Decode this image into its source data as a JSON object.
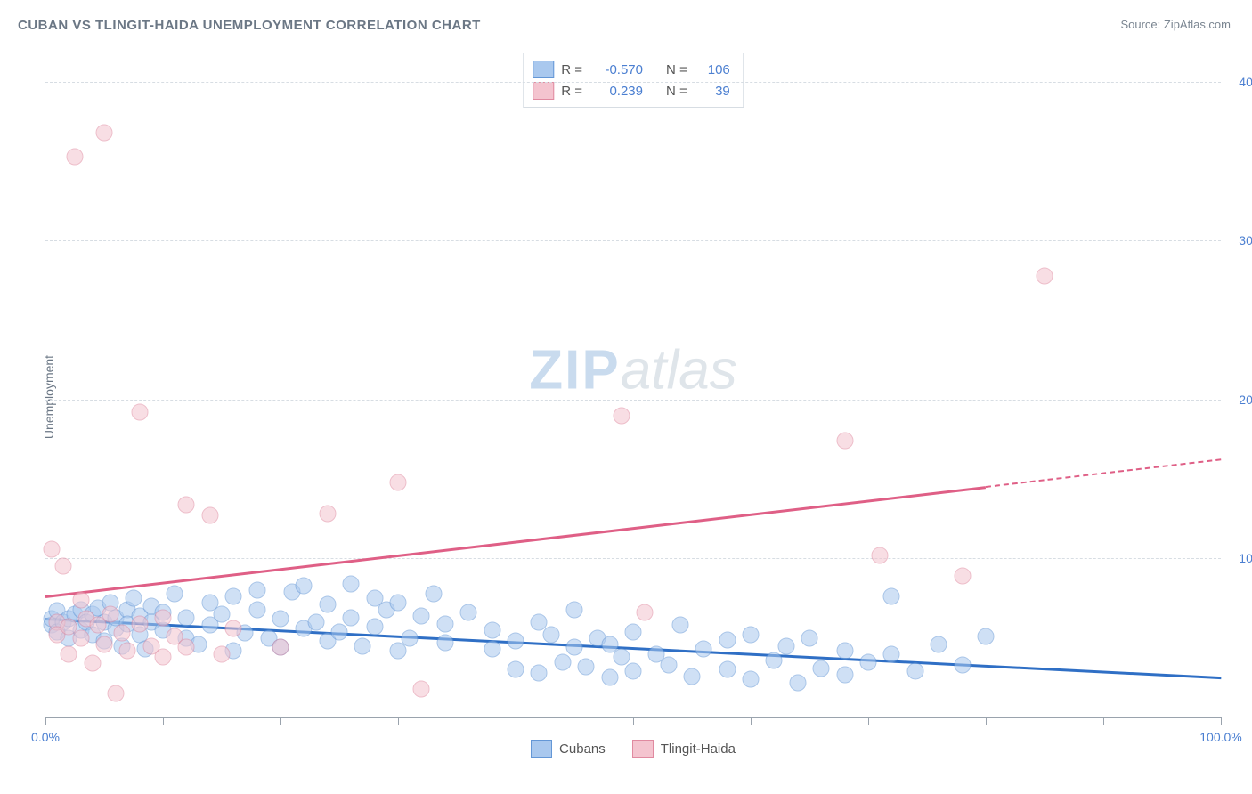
{
  "title": "CUBAN VS TLINGIT-HAIDA UNEMPLOYMENT CORRELATION CHART",
  "source_prefix": "Source: ",
  "source_name": "ZipAtlas.com",
  "ylabel": "Unemployment",
  "watermark": {
    "bold": "ZIP",
    "light": "atlas"
  },
  "chart": {
    "type": "scatter",
    "background_color": "#ffffff",
    "grid_color": "#d7dde3",
    "axis_color": "#9aa3ad",
    "tick_label_color": "#4b7fd1",
    "tick_fontsize": 14,
    "title_fontsize": 15,
    "title_color": "#6b7785",
    "xlim": [
      0,
      100
    ],
    "ylim": [
      0,
      42
    ],
    "xtick_step": 10,
    "x_labels": {
      "0": "0.0%",
      "100": "100.0%"
    },
    "y_gridlines": [
      10,
      20,
      30,
      40
    ],
    "y_labels": {
      "10": "10.0%",
      "20": "20.0%",
      "30": "30.0%",
      "40": "40.0%"
    },
    "marker_radius": 8.5,
    "marker_opacity": 0.55
  },
  "series": [
    {
      "name": "Cubans",
      "fill": "#a9c8ee",
      "stroke": "#6497d6",
      "trend_color": "#2f6fc5",
      "R": "-0.570",
      "N": "106",
      "trend": {
        "x1": 0,
        "y1": 6.3,
        "x2": 100,
        "y2": 2.6,
        "solid_until_x": 100
      },
      "points": [
        {
          "x": 0.5,
          "y": 5.8
        },
        {
          "x": 0.5,
          "y": 6.2
        },
        {
          "x": 1,
          "y": 5.4
        },
        {
          "x": 1,
          "y": 6.7
        },
        {
          "x": 1.5,
          "y": 6.0
        },
        {
          "x": 2,
          "y": 6.2
        },
        {
          "x": 2,
          "y": 5.0
        },
        {
          "x": 2.5,
          "y": 6.5
        },
        {
          "x": 3,
          "y": 5.5
        },
        {
          "x": 3,
          "y": 6.8
        },
        {
          "x": 3.5,
          "y": 6.0
        },
        {
          "x": 4,
          "y": 6.5
        },
        {
          "x": 4,
          "y": 5.2
        },
        {
          "x": 4.5,
          "y": 6.9
        },
        {
          "x": 5,
          "y": 6.0
        },
        {
          "x": 5,
          "y": 4.8
        },
        {
          "x": 5.5,
          "y": 7.2
        },
        {
          "x": 6,
          "y": 5.6
        },
        {
          "x": 6,
          "y": 6.3
        },
        {
          "x": 6.5,
          "y": 4.5
        },
        {
          "x": 7,
          "y": 6.8
        },
        {
          "x": 7,
          "y": 5.9
        },
        {
          "x": 7.5,
          "y": 7.5
        },
        {
          "x": 8,
          "y": 5.2
        },
        {
          "x": 8,
          "y": 6.4
        },
        {
          "x": 8.5,
          "y": 4.3
        },
        {
          "x": 9,
          "y": 6.0
        },
        {
          "x": 9,
          "y": 7.0
        },
        {
          "x": 10,
          "y": 5.5
        },
        {
          "x": 10,
          "y": 6.6
        },
        {
          "x": 11,
          "y": 7.8
        },
        {
          "x": 12,
          "y": 5.0
        },
        {
          "x": 12,
          "y": 6.3
        },
        {
          "x": 13,
          "y": 4.6
        },
        {
          "x": 14,
          "y": 7.2
        },
        {
          "x": 14,
          "y": 5.8
        },
        {
          "x": 15,
          "y": 6.5
        },
        {
          "x": 16,
          "y": 4.2
        },
        {
          "x": 16,
          "y": 7.6
        },
        {
          "x": 17,
          "y": 5.3
        },
        {
          "x": 18,
          "y": 6.8
        },
        {
          "x": 18,
          "y": 8.0
        },
        {
          "x": 19,
          "y": 5.0
        },
        {
          "x": 20,
          "y": 6.2
        },
        {
          "x": 20,
          "y": 4.4
        },
        {
          "x": 21,
          "y": 7.9
        },
        {
          "x": 22,
          "y": 5.6
        },
        {
          "x": 22,
          "y": 8.3
        },
        {
          "x": 23,
          "y": 6.0
        },
        {
          "x": 24,
          "y": 4.8
        },
        {
          "x": 24,
          "y": 7.1
        },
        {
          "x": 25,
          "y": 5.4
        },
        {
          "x": 26,
          "y": 8.4
        },
        {
          "x": 26,
          "y": 6.3
        },
        {
          "x": 27,
          "y": 4.5
        },
        {
          "x": 28,
          "y": 7.5
        },
        {
          "x": 28,
          "y": 5.7
        },
        {
          "x": 29,
          "y": 6.8
        },
        {
          "x": 30,
          "y": 4.2
        },
        {
          "x": 30,
          "y": 7.2
        },
        {
          "x": 31,
          "y": 5.0
        },
        {
          "x": 32,
          "y": 6.4
        },
        {
          "x": 33,
          "y": 7.8
        },
        {
          "x": 34,
          "y": 4.7
        },
        {
          "x": 34,
          "y": 5.9
        },
        {
          "x": 36,
          "y": 6.6
        },
        {
          "x": 38,
          "y": 4.3
        },
        {
          "x": 38,
          "y": 5.5
        },
        {
          "x": 40,
          "y": 3.0
        },
        {
          "x": 40,
          "y": 4.8
        },
        {
          "x": 42,
          "y": 6.0
        },
        {
          "x": 42,
          "y": 2.8
        },
        {
          "x": 43,
          "y": 5.2
        },
        {
          "x": 44,
          "y": 3.5
        },
        {
          "x": 45,
          "y": 4.4
        },
        {
          "x": 45,
          "y": 6.8
        },
        {
          "x": 46,
          "y": 3.2
        },
        {
          "x": 47,
          "y": 5.0
        },
        {
          "x": 48,
          "y": 2.5
        },
        {
          "x": 48,
          "y": 4.6
        },
        {
          "x": 49,
          "y": 3.8
        },
        {
          "x": 50,
          "y": 5.4
        },
        {
          "x": 50,
          "y": 2.9
        },
        {
          "x": 52,
          "y": 4.0
        },
        {
          "x": 53,
          "y": 3.3
        },
        {
          "x": 54,
          "y": 5.8
        },
        {
          "x": 55,
          "y": 2.6
        },
        {
          "x": 56,
          "y": 4.3
        },
        {
          "x": 58,
          "y": 3.0
        },
        {
          "x": 58,
          "y": 4.9
        },
        {
          "x": 60,
          "y": 2.4
        },
        {
          "x": 60,
          "y": 5.2
        },
        {
          "x": 62,
          "y": 3.6
        },
        {
          "x": 63,
          "y": 4.5
        },
        {
          "x": 64,
          "y": 2.2
        },
        {
          "x": 65,
          "y": 5.0
        },
        {
          "x": 66,
          "y": 3.1
        },
        {
          "x": 68,
          "y": 4.2
        },
        {
          "x": 68,
          "y": 2.7
        },
        {
          "x": 70,
          "y": 3.5
        },
        {
          "x": 72,
          "y": 7.6
        },
        {
          "x": 72,
          "y": 4.0
        },
        {
          "x": 74,
          "y": 2.9
        },
        {
          "x": 76,
          "y": 4.6
        },
        {
          "x": 78,
          "y": 3.3
        },
        {
          "x": 80,
          "y": 5.1
        }
      ]
    },
    {
      "name": "Tlingit-Haida",
      "fill": "#f4c4cf",
      "stroke": "#e08aa0",
      "trend_color": "#df5f86",
      "R": "0.239",
      "N": "39",
      "trend": {
        "x1": 0,
        "y1": 7.7,
        "x2": 100,
        "y2": 16.3,
        "solid_until_x": 80
      },
      "points": [
        {
          "x": 0.5,
          "y": 10.6
        },
        {
          "x": 1,
          "y": 6.0
        },
        {
          "x": 1,
          "y": 5.2
        },
        {
          "x": 1.5,
          "y": 9.5
        },
        {
          "x": 2,
          "y": 4.0
        },
        {
          "x": 2,
          "y": 5.7
        },
        {
          "x": 2.5,
          "y": 35.3
        },
        {
          "x": 3,
          "y": 7.4
        },
        {
          "x": 3,
          "y": 5.0
        },
        {
          "x": 3.5,
          "y": 6.2
        },
        {
          "x": 4,
          "y": 3.4
        },
        {
          "x": 4.5,
          "y": 5.8
        },
        {
          "x": 5,
          "y": 4.6
        },
        {
          "x": 5,
          "y": 36.8
        },
        {
          "x": 5.5,
          "y": 6.5
        },
        {
          "x": 6,
          "y": 1.5
        },
        {
          "x": 6.5,
          "y": 5.3
        },
        {
          "x": 7,
          "y": 4.2
        },
        {
          "x": 8,
          "y": 5.9
        },
        {
          "x": 8,
          "y": 19.2
        },
        {
          "x": 9,
          "y": 4.5
        },
        {
          "x": 10,
          "y": 6.3
        },
        {
          "x": 10,
          "y": 3.8
        },
        {
          "x": 11,
          "y": 5.1
        },
        {
          "x": 12,
          "y": 13.4
        },
        {
          "x": 12,
          "y": 4.4
        },
        {
          "x": 14,
          "y": 12.7
        },
        {
          "x": 15,
          "y": 4.0
        },
        {
          "x": 16,
          "y": 5.6
        },
        {
          "x": 20,
          "y": 4.4
        },
        {
          "x": 24,
          "y": 12.8
        },
        {
          "x": 30,
          "y": 14.8
        },
        {
          "x": 32,
          "y": 1.8
        },
        {
          "x": 49,
          "y": 19.0
        },
        {
          "x": 51,
          "y": 6.6
        },
        {
          "x": 68,
          "y": 17.4
        },
        {
          "x": 71,
          "y": 10.2
        },
        {
          "x": 78,
          "y": 8.9
        },
        {
          "x": 85,
          "y": 27.8
        }
      ]
    }
  ],
  "legend_top": {
    "R_label": "R =",
    "N_label": "N ="
  },
  "legend_bottom": [
    {
      "label": "Cubans",
      "fill": "#a9c8ee",
      "stroke": "#6497d6"
    },
    {
      "label": "Tlingit-Haida",
      "fill": "#f4c4cf",
      "stroke": "#e08aa0"
    }
  ]
}
